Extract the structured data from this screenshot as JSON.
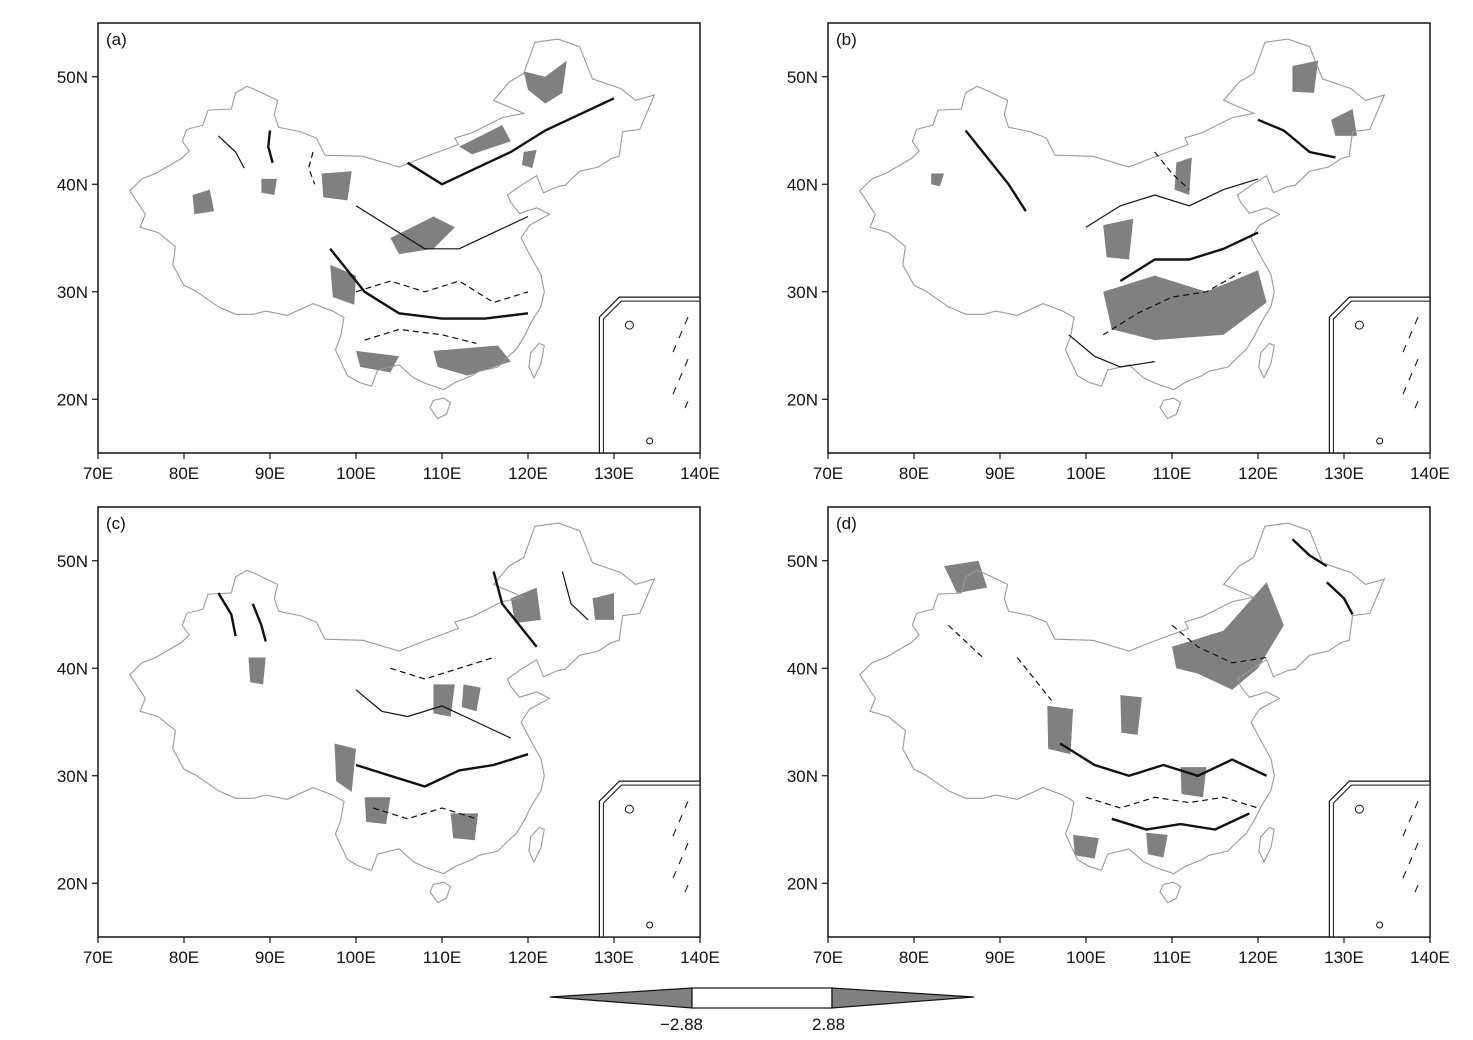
{
  "panels": [
    {
      "label": "(a)"
    },
    {
      "label": "(b)"
    },
    {
      "label": "(c)"
    },
    {
      "label": "(d)"
    }
  ],
  "axes": {
    "x_ticks": [
      "70E",
      "80E",
      "90E",
      "100E",
      "110E",
      "120E",
      "130E",
      "140E"
    ],
    "y_ticks": [
      "50N",
      "40N",
      "30N",
      "20N"
    ],
    "lon_range": [
      70,
      140
    ],
    "lat_range": [
      15,
      55
    ]
  },
  "colorbar": {
    "labels": [
      "−2.88",
      "2.88"
    ],
    "shade_color": "#808080",
    "thresholds": [
      -2.88,
      2.88
    ]
  }
}
